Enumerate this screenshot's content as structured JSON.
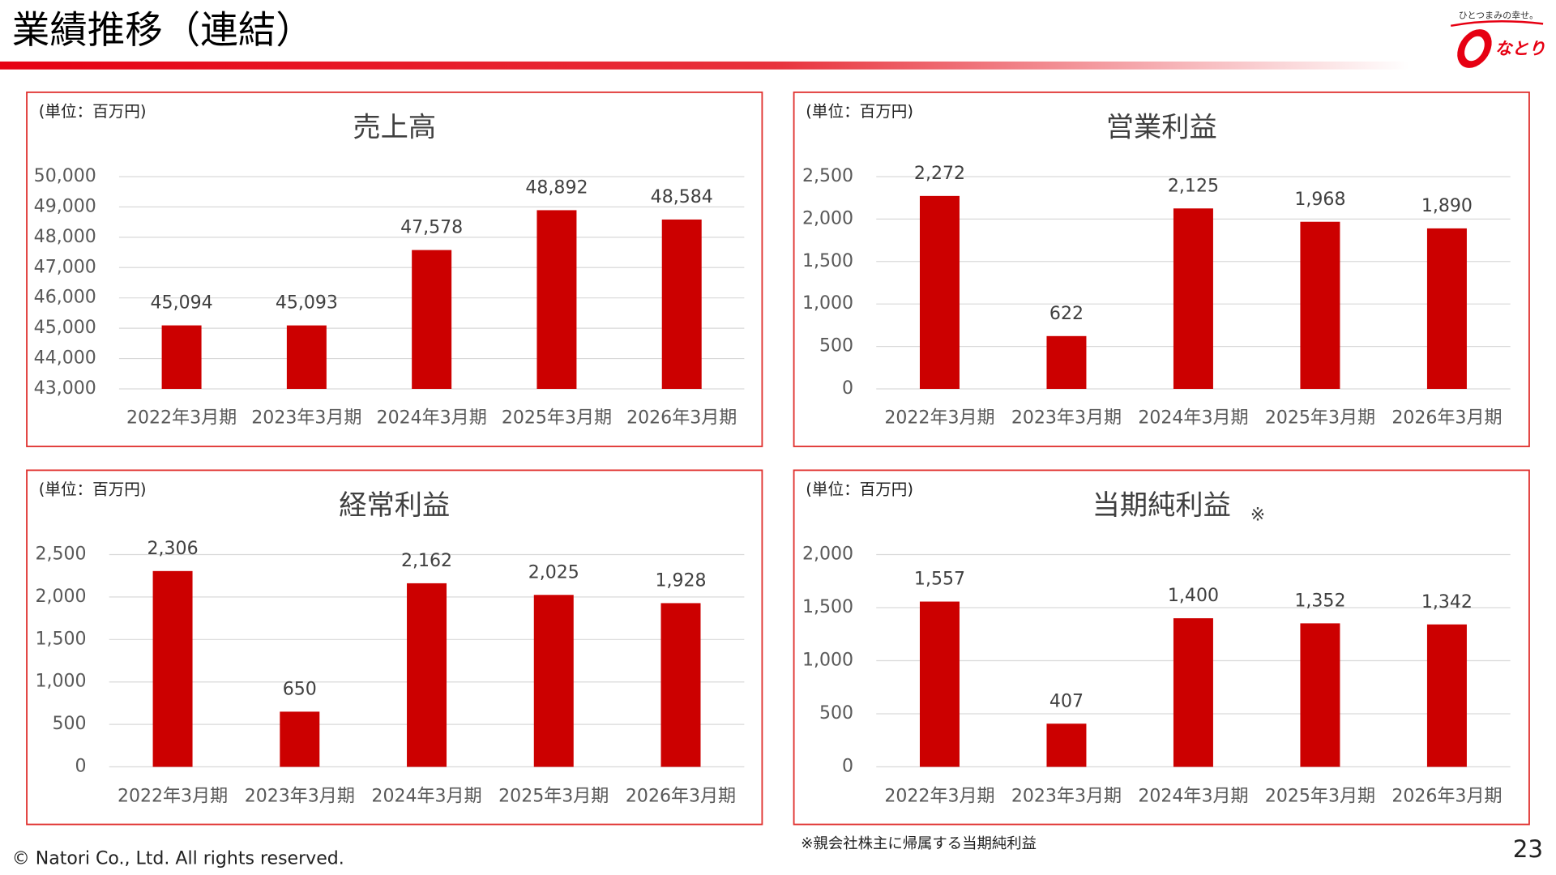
{
  "header": {
    "title": "業績推移（連結）"
  },
  "logo": {
    "tagline": "ひとつまみの幸せ。",
    "brand": "なとり"
  },
  "chart_data": [
    {
      "type": "bar",
      "unit": "(単位：百万円)",
      "title": "売上高",
      "color": "#cc0000",
      "grid": true,
      "categories": [
        "2022年3月期",
        "2023年3月期",
        "2024年3月期",
        "2025年3月期",
        "2026年3月期"
      ],
      "values": [
        45094,
        45093,
        47578,
        48892,
        48584
      ],
      "value_labels": [
        "45,094",
        "45,093",
        "47,578",
        "48,892",
        "48,584"
      ],
      "ylim": [
        43000,
        50000
      ],
      "yticks": [
        {
          "value": 43000,
          "label": "43,000"
        },
        {
          "value": 44000,
          "label": "44,000"
        },
        {
          "value": 45000,
          "label": "45,000"
        },
        {
          "value": 46000,
          "label": "46,000"
        },
        {
          "value": 47000,
          "label": "47,000"
        },
        {
          "value": 48000,
          "label": "48,000"
        },
        {
          "value": 49000,
          "label": "49,000"
        },
        {
          "value": 50000,
          "label": "50,000"
        }
      ]
    },
    {
      "type": "bar",
      "unit": "(単位：百万円)",
      "title": "営業利益",
      "color": "#cc0000",
      "grid": true,
      "categories": [
        "2022年3月期",
        "2023年3月期",
        "2024年3月期",
        "2025年3月期",
        "2026年3月期"
      ],
      "values": [
        2272,
        622,
        2125,
        1968,
        1890
      ],
      "value_labels": [
        "2,272",
        "622",
        "2,125",
        "1,968",
        "1,890"
      ],
      "ylim": [
        0,
        2500
      ],
      "yticks": [
        0,
        500,
        {
          "value": 1000,
          "label": "1,000"
        },
        {
          "value": 1500,
          "label": "1,500"
        },
        {
          "value": 2000,
          "label": "2,000"
        },
        {
          "value": 2500,
          "label": "2,500"
        }
      ]
    },
    {
      "type": "bar",
      "unit": "(単位：百万円)",
      "title": "経常利益",
      "color": "#cc0000",
      "grid": true,
      "categories": [
        "2022年3月期",
        "2023年3月期",
        "2024年3月期",
        "2025年3月期",
        "2026年3月期"
      ],
      "values": [
        2306,
        650,
        2162,
        2025,
        1928
      ],
      "value_labels": [
        "2,306",
        "650",
        "2,162",
        "2,025",
        "1,928"
      ],
      "ylim": [
        0,
        2500
      ],
      "yticks": [
        0,
        500,
        {
          "value": 1000,
          "label": "1,000"
        },
        {
          "value": 1500,
          "label": "1,500"
        },
        {
          "value": 2000,
          "label": "2,000"
        },
        {
          "value": 2500,
          "label": "2,500"
        }
      ]
    },
    {
      "type": "bar",
      "unit": "(単位：百万円)",
      "title": "当期純利益",
      "title_note": "※",
      "color": "#cc0000",
      "grid": true,
      "categories": [
        "2022年3月期",
        "2023年3月期",
        "2024年3月期",
        "2025年3月期",
        "2026年3月期"
      ],
      "values": [
        1557,
        407,
        1400,
        1352,
        1342
      ],
      "value_labels": [
        "1,557",
        "407",
        "1,400",
        "1,352",
        "1,342"
      ],
      "ylim": [
        0,
        2000
      ],
      "yticks": [
        0,
        500,
        {
          "value": 1000,
          "label": "1,000"
        },
        {
          "value": 1500,
          "label": "1,500"
        },
        {
          "value": 2000,
          "label": "2,000"
        }
      ]
    }
  ],
  "footer": {
    "note": "※親会社株主に帰属する当期純利益",
    "copyright": "© Natori Co., Ltd. All rights reserved.",
    "page": "23"
  }
}
